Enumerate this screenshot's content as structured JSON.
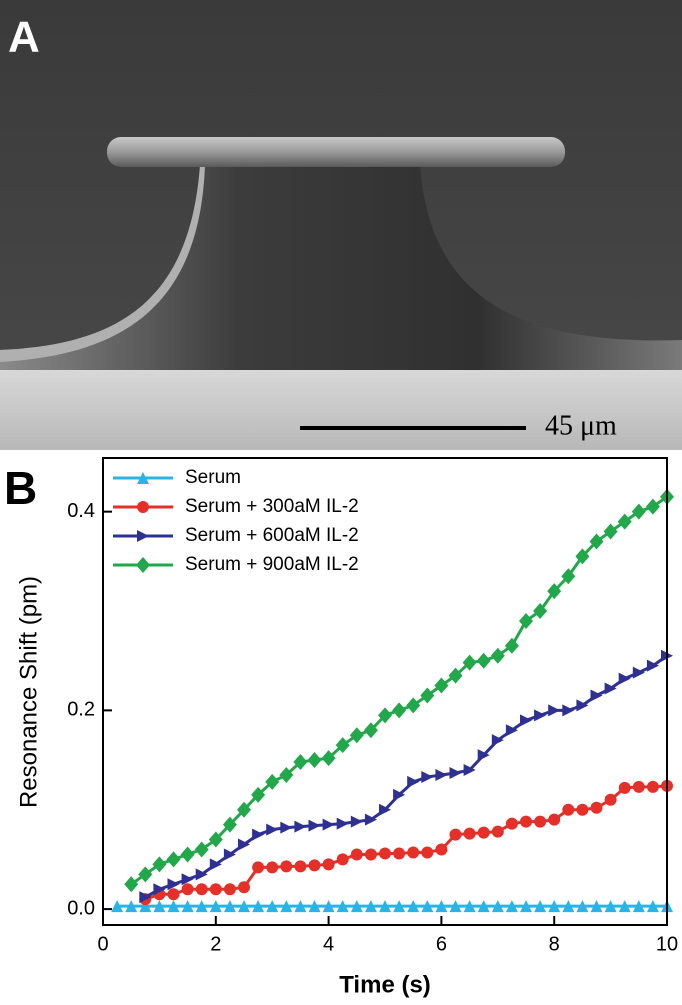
{
  "panel_a": {
    "label": "A",
    "scale_bar": "45 μm"
  },
  "chart_data": {
    "type": "line",
    "panel_label": "B",
    "x_label": "Time (s)",
    "y_label": "Resonance Shift (pm)",
    "x": [
      0.25,
      0.5,
      0.75,
      1,
      1.25,
      1.5,
      1.75,
      2,
      2.25,
      2.5,
      2.75,
      3,
      3.25,
      3.5,
      3.75,
      4,
      4.25,
      4.5,
      4.75,
      5,
      5.25,
      5.5,
      5.75,
      6,
      6.25,
      6.5,
      6.75,
      7,
      7.25,
      7.5,
      7.75,
      8,
      8.25,
      8.5,
      8.75,
      9,
      9.25,
      9.5,
      9.75,
      10
    ],
    "series": [
      {
        "name": "Serum",
        "color": "#2ab4e6",
        "marker": "triangle-up",
        "values": [
          0.003,
          0.003,
          0.003,
          0.003,
          0.003,
          0.003,
          0.003,
          0.003,
          0.003,
          0.003,
          0.003,
          0.003,
          0.003,
          0.003,
          0.003,
          0.003,
          0.003,
          0.003,
          0.003,
          0.003,
          0.003,
          0.003,
          0.003,
          0.003,
          0.003,
          0.003,
          0.003,
          0.003,
          0.003,
          0.003,
          0.003,
          0.003,
          0.003,
          0.003,
          0.003,
          0.003,
          0.003,
          0.003,
          0.003,
          0.003
        ]
      },
      {
        "name": "Serum + 300aM IL-2",
        "color": "#e5302a",
        "marker": "circle",
        "values": [
          null,
          null,
          0.01,
          0.015,
          0.015,
          0.02,
          0.02,
          0.02,
          0.02,
          0.022,
          0.042,
          0.042,
          0.043,
          0.043,
          0.044,
          0.045,
          0.05,
          0.055,
          0.055,
          0.056,
          0.056,
          0.057,
          0.057,
          0.06,
          0.075,
          0.076,
          0.077,
          0.078,
          0.086,
          0.088,
          0.088,
          0.09,
          0.1,
          0.1,
          0.102,
          0.11,
          0.122,
          0.123,
          0.123,
          0.124
        ]
      },
      {
        "name": "Serum + 600aM IL-2",
        "color": "#2e3192",
        "marker": "triangle-right",
        "values": [
          null,
          null,
          0.012,
          0.02,
          0.025,
          0.03,
          0.035,
          0.045,
          0.055,
          0.065,
          0.075,
          0.08,
          0.082,
          0.083,
          0.084,
          0.085,
          0.086,
          0.088,
          0.09,
          0.1,
          0.115,
          0.128,
          0.133,
          0.135,
          0.137,
          0.14,
          0.155,
          0.17,
          0.18,
          0.19,
          0.195,
          0.2,
          0.2,
          0.205,
          0.215,
          0.222,
          0.232,
          0.238,
          0.245,
          0.255
        ]
      },
      {
        "name": "Serum + 900aM IL-2",
        "color": "#22a84a",
        "marker": "diamond",
        "values": [
          null,
          0.025,
          0.035,
          0.045,
          0.05,
          0.055,
          0.06,
          0.07,
          0.085,
          0.1,
          0.115,
          0.128,
          0.135,
          0.148,
          0.15,
          0.152,
          0.165,
          0.175,
          0.18,
          0.195,
          0.2,
          0.205,
          0.215,
          0.225,
          0.235,
          0.248,
          0.25,
          0.255,
          0.265,
          0.29,
          0.3,
          0.32,
          0.335,
          0.355,
          0.37,
          0.38,
          0.39,
          0.4,
          0.405,
          0.415
        ]
      }
    ],
    "xlim": [
      0,
      10
    ],
    "xticks": [
      0,
      2,
      4,
      6,
      8,
      10
    ],
    "ylim": [
      -0.016,
      0.454
    ],
    "yticks": [
      {
        "value": 0,
        "label": "0.0"
      },
      0.2,
      0.4
    ],
    "legend": "upper-left"
  }
}
